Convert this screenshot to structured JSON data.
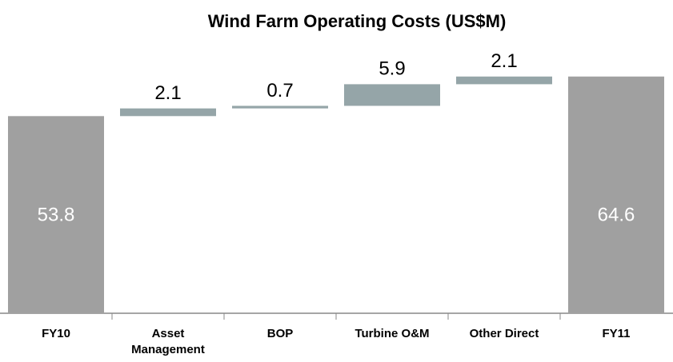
{
  "chart_data": {
    "type": "waterfall",
    "title": "Wind Farm Operating Costs (US$M)",
    "categories": [
      "FY10",
      "Asset Management",
      "BOP",
      "Turbine O&M",
      "Other Direct",
      "FY11"
    ],
    "values": [
      53.8,
      2.1,
      0.7,
      5.9,
      2.1,
      64.6
    ],
    "is_total": [
      true,
      false,
      false,
      false,
      false,
      true
    ],
    "total_color": "#a0a0a0",
    "delta_color": "#95a5a8",
    "ylim": [
      0,
      70
    ]
  }
}
